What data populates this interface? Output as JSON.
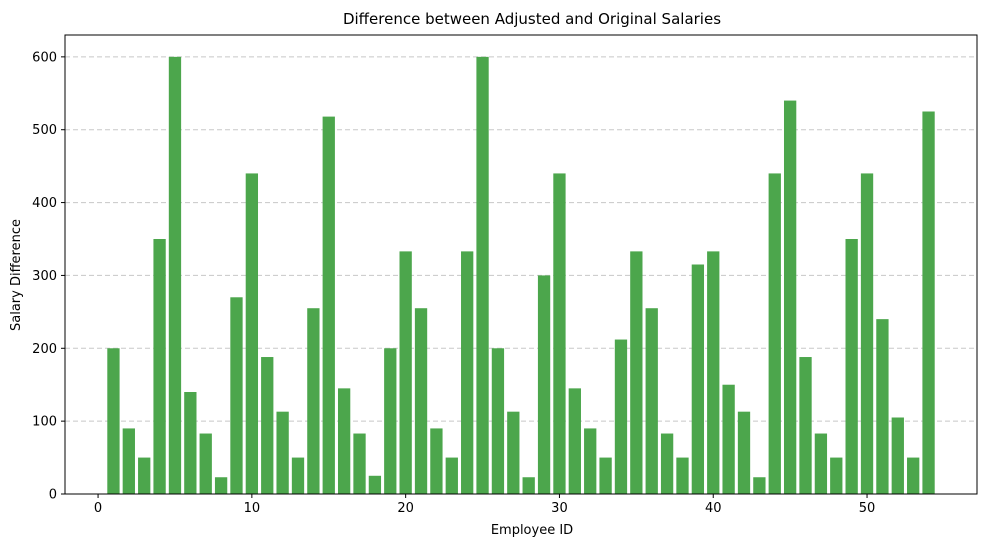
{
  "chart_data": {
    "type": "bar",
    "title": "Difference between Adjusted and Original Salaries",
    "xlabel": "Employee ID",
    "ylabel": "Salary Difference",
    "x": [
      1,
      2,
      3,
      4,
      5,
      6,
      7,
      8,
      9,
      10,
      11,
      12,
      13,
      14,
      15,
      16,
      17,
      18,
      19,
      20,
      21,
      22,
      23,
      24,
      25,
      26,
      27,
      28,
      29,
      30,
      31,
      32,
      33,
      34,
      35,
      36,
      37,
      38,
      39,
      40,
      41,
      42,
      43,
      44,
      45,
      46,
      47,
      48,
      49,
      50,
      51,
      52,
      53,
      54
    ],
    "values": [
      200,
      90,
      50,
      350,
      600,
      140,
      83,
      23,
      270,
      440,
      188,
      113,
      50,
      255,
      518,
      145,
      83,
      25,
      200,
      333,
      255,
      90,
      50,
      333,
      600,
      200,
      113,
      23,
      300,
      440,
      145,
      90,
      50,
      212,
      333,
      255,
      83,
      50,
      315,
      333,
      150,
      113,
      23,
      440,
      540,
      188,
      83,
      50,
      350,
      440,
      240,
      105,
      50,
      525
    ],
    "xlim": [
      -2.15,
      57.15
    ],
    "ylim": [
      0,
      630
    ],
    "xticks": [
      0,
      10,
      20,
      30,
      40,
      50
    ],
    "yticks": [
      0,
      100,
      200,
      300,
      400,
      500,
      600
    ],
    "bar_color": "#4ca64c",
    "grid": "y-dashed"
  }
}
